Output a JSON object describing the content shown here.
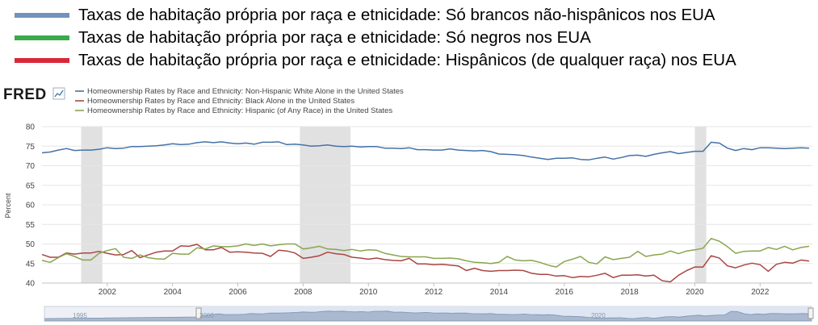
{
  "top_legend": [
    {
      "label": "Taxas de habitação própria por raça e etnicidade: Só brancos não-hispânicos nos EUA",
      "color": "#7094bc"
    },
    {
      "label": "Taxas de habitação própria por raça e etnicidade: Só negros nos EUA",
      "color": "#3aaa4a"
    },
    {
      "label": "Taxas de habitação própria por raça e etnicidade: Hispânicos (de qualquer raça) nos EUA",
      "color": "#d8283a"
    }
  ],
  "fred": {
    "logo": "FRED",
    "legend": [
      {
        "label": "Homeownership Rates by Race and Ethnicity: Non-Hispanic White Alone in the United States",
        "color": "#4572a7"
      },
      {
        "label": "Homeownership Rates by Race and Ethnicity: Black Alone in the United States",
        "color": "#aa4643"
      },
      {
        "label": "Homeownership Rates by Race and Ethnicity: Hispanic (of Any Race) in the United States",
        "color": "#89a54e"
      }
    ],
    "navigator_labels": [
      "1995",
      "2000",
      "2020"
    ]
  },
  "chart_data": {
    "type": "line",
    "ylabel": "Percent",
    "ylim": [
      40,
      80
    ],
    "xlim": [
      2000.0,
      2023.6
    ],
    "yticks": [
      40,
      45,
      50,
      55,
      60,
      65,
      70,
      75,
      80
    ],
    "xticks": [
      2002,
      2004,
      2006,
      2008,
      2010,
      2012,
      2014,
      2016,
      2018,
      2020,
      2022
    ],
    "grid": true,
    "recessions": [
      [
        2001.2,
        2001.85
      ],
      [
        2007.9,
        2009.45
      ],
      [
        2020.0,
        2020.35
      ]
    ],
    "x": [
      2000.0,
      2000.25,
      2000.5,
      2000.75,
      2001.0,
      2001.25,
      2001.5,
      2001.75,
      2002.0,
      2002.25,
      2002.5,
      2002.75,
      2003.0,
      2003.25,
      2003.5,
      2003.75,
      2004.0,
      2004.25,
      2004.5,
      2004.75,
      2005.0,
      2005.25,
      2005.5,
      2005.75,
      2006.0,
      2006.25,
      2006.5,
      2006.75,
      2007.0,
      2007.25,
      2007.5,
      2007.75,
      2008.0,
      2008.25,
      2008.5,
      2008.75,
      2009.0,
      2009.25,
      2009.5,
      2009.75,
      2010.0,
      2010.25,
      2010.5,
      2010.75,
      2011.0,
      2011.25,
      2011.5,
      2011.75,
      2012.0,
      2012.25,
      2012.5,
      2012.75,
      2013.0,
      2013.25,
      2013.5,
      2013.75,
      2014.0,
      2014.25,
      2014.5,
      2014.75,
      2015.0,
      2015.25,
      2015.5,
      2015.75,
      2016.0,
      2016.25,
      2016.5,
      2016.75,
      2017.0,
      2017.25,
      2017.5,
      2017.75,
      2018.0,
      2018.25,
      2018.5,
      2018.75,
      2019.0,
      2019.25,
      2019.5,
      2019.75,
      2020.0,
      2020.25,
      2020.5,
      2020.75,
      2021.0,
      2021.25,
      2021.5,
      2021.75,
      2022.0,
      2022.25,
      2022.5,
      2022.75,
      2023.0,
      2023.25,
      2023.5
    ],
    "series": [
      {
        "name": "Homeownership Rates by Race and Ethnicity: Non-Hispanic White Alone in the United States",
        "color": "#4572a7",
        "values": [
          73.3,
          73.5,
          74.0,
          74.4,
          73.9,
          74.0,
          74.0,
          74.2,
          74.6,
          74.4,
          74.5,
          74.9,
          74.9,
          75.0,
          75.1,
          75.3,
          75.6,
          75.4,
          75.5,
          75.9,
          76.1,
          75.9,
          76.1,
          75.8,
          75.6,
          75.8,
          75.5,
          76.0,
          76.0,
          76.1,
          75.4,
          75.5,
          75.3,
          75.0,
          75.1,
          75.3,
          75.0,
          74.9,
          75.0,
          74.8,
          74.9,
          74.9,
          74.5,
          74.5,
          74.4,
          74.6,
          74.1,
          74.1,
          74.0,
          74.0,
          74.3,
          74.0,
          73.9,
          73.8,
          73.9,
          73.6,
          73.0,
          72.9,
          72.8,
          72.6,
          72.2,
          71.9,
          71.6,
          71.9,
          71.9,
          72.0,
          71.6,
          71.5,
          71.9,
          72.2,
          71.7,
          72.1,
          72.6,
          72.7,
          72.4,
          72.9,
          73.3,
          73.6,
          73.1,
          73.4,
          73.7,
          73.7,
          76.0,
          75.8,
          74.5,
          73.9,
          74.4,
          74.1,
          74.6,
          74.6,
          74.5,
          74.4,
          74.5,
          74.6,
          74.5
        ]
      },
      {
        "name": "Homeownership Rates by Race and Ethnicity: Black Alone in the United States",
        "color": "#aa4643",
        "values": [
          47.3,
          46.6,
          46.6,
          47.7,
          47.4,
          47.7,
          47.7,
          48.1,
          47.6,
          47.2,
          47.3,
          48.3,
          46.5,
          47.2,
          47.9,
          48.2,
          48.2,
          49.5,
          49.4,
          49.9,
          48.5,
          48.5,
          49.1,
          47.9,
          48.0,
          47.9,
          47.7,
          47.6,
          46.8,
          48.4,
          48.2,
          47.7,
          46.3,
          46.6,
          47.0,
          47.9,
          47.5,
          47.3,
          46.6,
          46.4,
          46.1,
          46.4,
          46.0,
          45.8,
          45.7,
          46.3,
          44.9,
          44.9,
          44.7,
          44.8,
          44.6,
          44.4,
          43.2,
          43.8,
          43.2,
          43.0,
          43.2,
          43.2,
          43.3,
          43.2,
          42.5,
          42.2,
          42.2,
          41.8,
          41.9,
          41.4,
          41.7,
          41.6,
          42.0,
          42.5,
          41.4,
          42.0,
          42.0,
          42.1,
          41.8,
          42.0,
          40.6,
          40.3,
          42.0,
          43.2,
          44.1,
          44.1,
          47.0,
          46.4,
          44.4,
          43.9,
          44.6,
          45.1,
          44.7,
          43.0,
          44.8,
          45.3,
          45.1,
          45.9,
          45.6
        ]
      },
      {
        "name": "Homeownership Rates by Race and Ethnicity: Hispanic (of Any Race) in the United States",
        "color": "#89a54e",
        "values": [
          45.8,
          45.3,
          46.5,
          47.5,
          46.8,
          45.9,
          45.9,
          47.6,
          48.3,
          48.8,
          46.6,
          46.3,
          47.2,
          46.5,
          46.2,
          46.1,
          47.6,
          47.4,
          47.4,
          49.0,
          48.7,
          49.5,
          49.3,
          49.3,
          49.5,
          50.0,
          49.6,
          50.0,
          49.5,
          49.8,
          50.0,
          50.0,
          48.7,
          49.0,
          49.4,
          48.7,
          48.6,
          48.3,
          48.6,
          48.2,
          48.5,
          48.4,
          47.6,
          47.2,
          46.8,
          46.7,
          46.7,
          46.7,
          46.3,
          46.3,
          46.4,
          46.2,
          45.7,
          45.3,
          45.2,
          45.0,
          45.3,
          46.8,
          45.9,
          45.7,
          45.8,
          45.3,
          44.6,
          44.1,
          45.5,
          46.1,
          46.8,
          45.3,
          44.9,
          46.7,
          46.0,
          46.3,
          46.6,
          48.1,
          46.8,
          47.2,
          47.4,
          48.2,
          47.5,
          48.2,
          48.5,
          48.9,
          51.4,
          50.7,
          49.3,
          47.6,
          48.1,
          48.2,
          48.2,
          49.1,
          48.6,
          49.4,
          48.5,
          49.1,
          49.4
        ]
      }
    ]
  }
}
